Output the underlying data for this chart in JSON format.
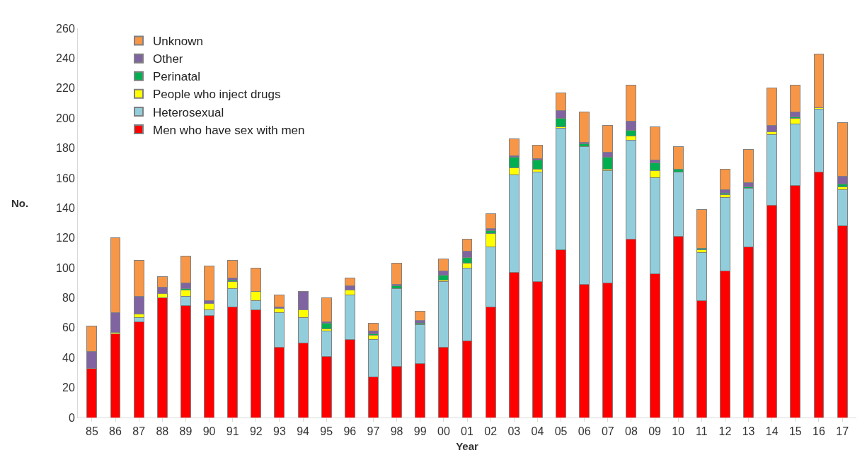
{
  "chart_data": {
    "type": "bar",
    "stacked": true,
    "xlabel": "Year",
    "ylabel": "No.",
    "categories": [
      "85",
      "86",
      "87",
      "88",
      "89",
      "90",
      "91",
      "92",
      "93",
      "94",
      "95",
      "96",
      "97",
      "98",
      "99",
      "00",
      "01",
      "02",
      "03",
      "04",
      "05",
      "06",
      "07",
      "08",
      "09",
      "10",
      "11",
      "12",
      "13",
      "14",
      "15",
      "16",
      "17"
    ],
    "series": [
      {
        "name": "Men who have sex with men",
        "color": "#ff0000",
        "values": [
          33,
          56,
          64,
          80,
          75,
          68,
          74,
          72,
          47,
          50,
          41,
          52,
          27,
          34,
          36,
          47,
          51,
          74,
          97,
          91,
          112,
          89,
          90,
          119,
          96,
          121,
          78,
          98,
          114,
          142,
          155,
          164,
          128
        ]
      },
      {
        "name": "Heterosexual",
        "color": "#92cddc",
        "values": [
          0,
          0,
          3,
          0,
          6,
          4,
          12,
          6,
          23,
          17,
          17,
          30,
          25,
          52,
          26,
          44,
          49,
          40,
          65,
          73,
          81,
          92,
          75,
          66,
          64,
          43,
          32,
          49,
          39,
          47,
          41,
          42,
          24
        ]
      },
      {
        "name": "People who inject drugs",
        "color": "#ffff00",
        "values": [
          0,
          1,
          2,
          3,
          4,
          4,
          5,
          6,
          3,
          5,
          1,
          3,
          3,
          0,
          0,
          1,
          3,
          9,
          5,
          2,
          1,
          0,
          1,
          3,
          5,
          0,
          2,
          2,
          0,
          2,
          4,
          1,
          2
        ]
      },
      {
        "name": "Perinatal",
        "color": "#00b050",
        "values": [
          0,
          0,
          0,
          0,
          1,
          0,
          1,
          0,
          0,
          0,
          4,
          0,
          1,
          2,
          1,
          3,
          4,
          2,
          7,
          6,
          6,
          2,
          8,
          4,
          5,
          2,
          1,
          1,
          1,
          0,
          1,
          0,
          2
        ]
      },
      {
        "name": "Other",
        "color": "#8064a2",
        "values": [
          11,
          13,
          12,
          4,
          4,
          2,
          1,
          0,
          1,
          12,
          1,
          3,
          2,
          1,
          2,
          3,
          4,
          1,
          1,
          1,
          5,
          1,
          3,
          6,
          2,
          0,
          0,
          2,
          3,
          4,
          3,
          0,
          5
        ]
      },
      {
        "name": "Unknown",
        "color": "#f79646",
        "values": [
          17,
          50,
          24,
          7,
          18,
          23,
          12,
          16,
          8,
          0,
          16,
          5,
          5,
          14,
          6,
          8,
          8,
          10,
          11,
          9,
          12,
          20,
          18,
          24,
          22,
          15,
          26,
          14,
          22,
          25,
          18,
          36,
          36
        ]
      }
    ],
    "ylim": [
      0,
      260
    ],
    "yticks": [
      0,
      20,
      40,
      60,
      80,
      100,
      120,
      140,
      160,
      180,
      200,
      220,
      240,
      260
    ],
    "grid": false,
    "legend": "top left"
  }
}
